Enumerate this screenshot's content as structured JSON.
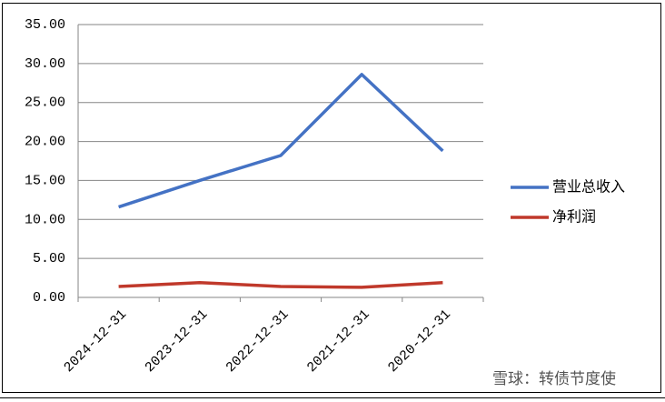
{
  "chart_data": {
    "type": "line",
    "categories": [
      "2024-12-31",
      "2023-12-31",
      "2022-12-31",
      "2021-12-31",
      "2020-12-31"
    ],
    "series": [
      {
        "name": "营业总收入",
        "color": "#4472c4",
        "values": [
          11.6,
          15.0,
          18.2,
          28.6,
          18.8
        ]
      },
      {
        "name": "净利润",
        "color": "#c0392b",
        "values": [
          1.4,
          1.9,
          1.4,
          1.3,
          1.9
        ]
      }
    ],
    "ylim": [
      0,
      35
    ],
    "yticks": [
      {
        "value": 0,
        "label": "0.00"
      },
      {
        "value": 5,
        "label": "5.00"
      },
      {
        "value": 10,
        "label": "10.00"
      },
      {
        "value": 15,
        "label": "15.00"
      },
      {
        "value": 20,
        "label": "20.00"
      },
      {
        "value": 25,
        "label": "25.00"
      },
      {
        "value": 30,
        "label": "30.00"
      },
      {
        "value": 35,
        "label": "35.00"
      }
    ],
    "grid": true,
    "legend": "right",
    "watermark": "雪球：转债节度使"
  }
}
